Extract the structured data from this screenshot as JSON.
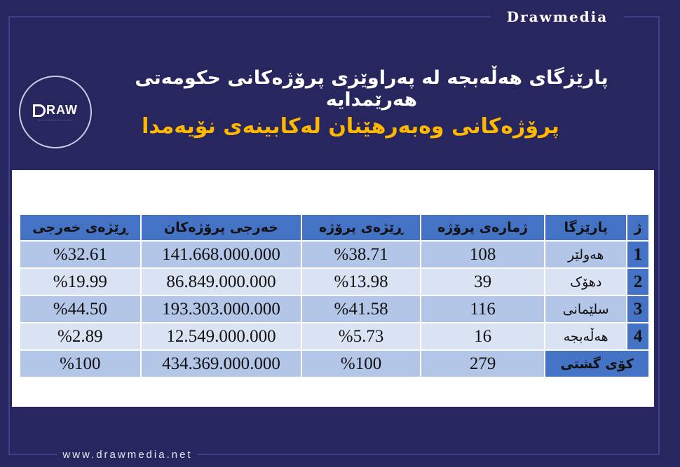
{
  "brand": {
    "top": "Drawmedia",
    "bottom": "www.drawmedia.net",
    "logo": "DRAW"
  },
  "title": "پارێزگای هەڵەبجە لە پەراوێزی پرۆژەکانی حکومەتی هەرێمدایە",
  "subtitle": "پرۆژەکانی وەبەرهێنان لەکابینەی نۆیەمدا",
  "colors": {
    "background": "#28265f",
    "header": "#4472c4",
    "row_dark": "#b4c6e7",
    "row_light": "#dae3f3",
    "subtitle": "#ffb800"
  },
  "table": {
    "headers": [
      "ژ",
      "پارێزگا",
      "ژمارەی پرۆژە",
      "ڕێژەی پرۆژە",
      "خەرجی پرۆژەکان",
      "ڕێژەی خەرجی"
    ],
    "rows": [
      {
        "n": "1",
        "province": "هەولێر",
        "count": "108",
        "count_pct": "%38.71",
        "cost": "141.668.000.000",
        "cost_pct": "%32.61"
      },
      {
        "n": "2",
        "province": "دهۆک",
        "count": "39",
        "count_pct": "%13.98",
        "cost": "86.849.000.000",
        "cost_pct": "%19.99"
      },
      {
        "n": "3",
        "province": "سلێمانی",
        "count": "116",
        "count_pct": "%41.58",
        "cost": "193.303.000.000",
        "cost_pct": "%44.50"
      },
      {
        "n": "4",
        "province": "هەڵەبجە",
        "count": "16",
        "count_pct": "%5.73",
        "cost": "12.549.000.000",
        "cost_pct": "%2.89"
      }
    ],
    "total": {
      "label": "کۆی گشتی",
      "count": "279",
      "count_pct": "%100",
      "cost": "434.369.000.000",
      "cost_pct": "%100"
    }
  }
}
